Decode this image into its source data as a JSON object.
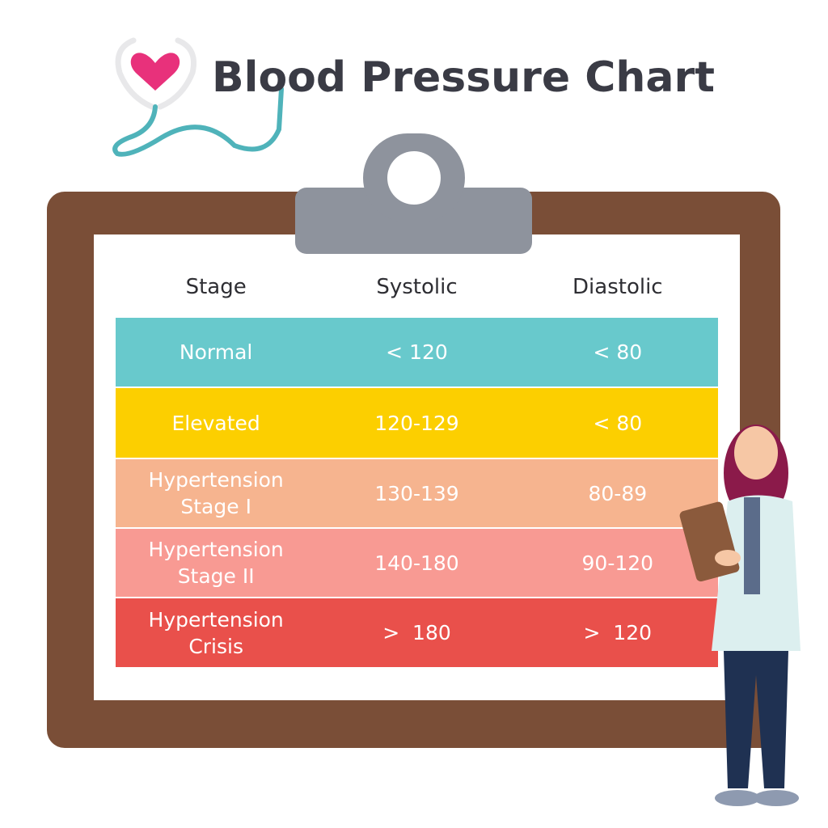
{
  "header": {
    "title": "Blood Pressure Chart"
  },
  "table": {
    "columns": [
      "Stage",
      "Systolic",
      "Diastolic"
    ],
    "rows": [
      [
        "Normal",
        "< 120",
        "< 80"
      ],
      [
        "Elevated",
        "120-129",
        "< 80"
      ],
      [
        "Hypertension Stage I",
        "130-139",
        "80-89"
      ],
      [
        "Hypertension Stage II",
        "140-180",
        "90-120"
      ],
      [
        "Hypertension Crisis",
        ">  180",
        ">  120"
      ]
    ]
  }
}
